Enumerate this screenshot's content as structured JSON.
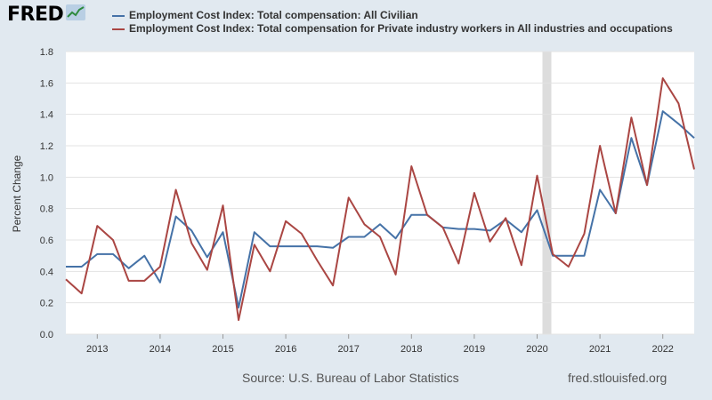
{
  "logo": {
    "text": "FRED",
    "icon": "fred-chart-icon"
  },
  "chart_data": {
    "type": "line",
    "title": "",
    "xlabel": "",
    "ylabel": "Percent Change",
    "ylim": [
      0.0,
      1.8
    ],
    "yticks": [
      "0.0",
      "0.2",
      "0.4",
      "0.6",
      "0.8",
      "1.0",
      "1.2",
      "1.4",
      "1.6",
      "1.8"
    ],
    "xticks": [
      "2013",
      "2014",
      "2015",
      "2016",
      "2017",
      "2018",
      "2019",
      "2020",
      "2021",
      "2022"
    ],
    "x": [
      "2012-Q3",
      "2012-Q4",
      "2013-Q1",
      "2013-Q2",
      "2013-Q3",
      "2013-Q4",
      "2014-Q1",
      "2014-Q2",
      "2014-Q3",
      "2014-Q4",
      "2015-Q1",
      "2015-Q2",
      "2015-Q3",
      "2015-Q4",
      "2016-Q1",
      "2016-Q2",
      "2016-Q3",
      "2016-Q4",
      "2017-Q1",
      "2017-Q2",
      "2017-Q3",
      "2017-Q4",
      "2018-Q1",
      "2018-Q2",
      "2018-Q3",
      "2018-Q4",
      "2019-Q1",
      "2019-Q2",
      "2019-Q3",
      "2019-Q4",
      "2020-Q1",
      "2020-Q2",
      "2020-Q3",
      "2020-Q4",
      "2021-Q1",
      "2021-Q2",
      "2021-Q3",
      "2021-Q4",
      "2022-Q1",
      "2022-Q2",
      "2022-Q3"
    ],
    "recession": [
      "2020-Q1",
      "2020-Q2"
    ],
    "grid": true,
    "legend_position": "top",
    "series": [
      {
        "name": "Employment Cost Index: Total compensation: All Civilian",
        "color": "#4572a7",
        "values": [
          0.43,
          0.43,
          0.51,
          0.51,
          0.42,
          0.5,
          0.33,
          0.75,
          0.66,
          0.49,
          0.65,
          0.17,
          0.65,
          0.56,
          0.56,
          0.56,
          0.56,
          0.55,
          0.62,
          0.62,
          0.7,
          0.61,
          0.76,
          0.76,
          0.68,
          0.67,
          0.67,
          0.66,
          0.73,
          0.65,
          0.79,
          0.5,
          0.5,
          0.5,
          0.92,
          0.77,
          1.25,
          0.95,
          1.42,
          1.34,
          1.25
        ]
      },
      {
        "name": "Employment Cost Index: Total compensation for Private industry workers in All industries and occupations",
        "color": "#aa4643",
        "values": [
          0.35,
          0.26,
          0.69,
          0.6,
          0.34,
          0.34,
          0.43,
          0.92,
          0.58,
          0.41,
          0.82,
          0.09,
          0.57,
          0.4,
          0.72,
          0.64,
          0.47,
          0.31,
          0.87,
          0.7,
          0.62,
          0.38,
          1.07,
          0.76,
          0.68,
          0.45,
          0.9,
          0.59,
          0.74,
          0.44,
          1.01,
          0.51,
          0.43,
          0.64,
          1.2,
          0.77,
          1.38,
          0.95,
          1.63,
          1.47,
          1.05
        ]
      }
    ]
  },
  "footer": {
    "source": "Source: U.S. Bureau of Labor Statistics",
    "url": "fred.stlouisfed.org"
  }
}
